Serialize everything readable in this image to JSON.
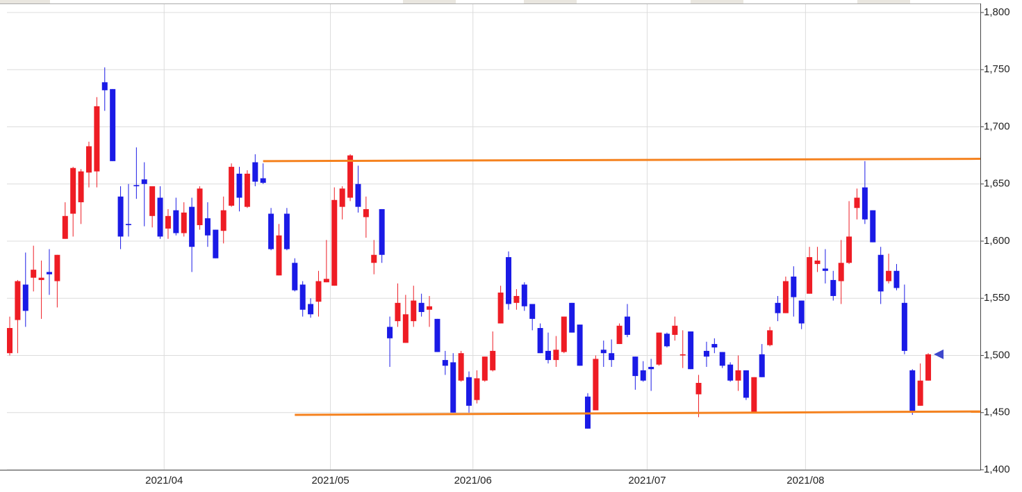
{
  "chart_data": {
    "type": "candlestick",
    "categories": [
      null,
      null,
      null,
      null,
      null,
      null,
      null,
      null,
      null,
      null,
      null,
      null,
      null,
      null,
      null,
      null,
      null,
      null,
      null,
      null,
      "2021/04",
      null,
      null,
      null,
      null,
      null,
      null,
      null,
      null,
      null,
      null,
      null,
      null,
      null,
      null,
      null,
      null,
      null,
      null,
      null,
      null,
      "2021/05",
      null,
      null,
      null,
      null,
      null,
      null,
      null,
      null,
      null,
      null,
      null,
      null,
      null,
      null,
      null,
      null,
      null,
      "2021/06",
      null,
      null,
      null,
      null,
      null,
      null,
      null,
      null,
      null,
      null,
      null,
      null,
      null,
      null,
      null,
      null,
      null,
      null,
      null,
      null,
      null,
      "2021/07",
      null,
      null,
      null,
      null,
      null,
      null,
      null,
      null,
      null,
      null,
      null,
      null,
      null,
      null,
      null,
      null,
      null,
      null,
      null,
      "2021/08",
      null,
      null,
      null,
      null,
      null,
      null,
      null,
      null,
      null,
      null,
      null,
      null,
      null,
      null,
      null
    ],
    "open": [
      1502,
      1531,
      1562,
      1568,
      1566,
      1573,
      1565,
      1602,
      1624,
      1634,
      1660,
      1661,
      1739,
      1733,
      1639,
      1615,
      1649,
      1654,
      1622,
      1638,
      1611,
      1627,
      1607,
      1630,
      1614,
      1620,
      1610,
      1609,
      1631,
      1659,
      1630,
      1669,
      1655,
      1624,
      1570,
      1624,
      1581,
      1562,
      1545,
      1547,
      1564,
      1561,
      1630,
      1638,
      1650,
      1621,
      1581,
      1628,
      1525,
      1530,
      1511,
      1530,
      1546,
      1540,
      1532,
      1496,
      1494,
      1478,
      1481,
      1461,
      1478,
      1487,
      1528,
      1586,
      1546,
      1562,
      1545,
      1524,
      1504,
      1496,
      1503,
      1546,
      1527,
      1464,
      1452,
      1505,
      1502,
      1510,
      1534,
      1499,
      1487,
      1490,
      1492,
      1519,
      1518,
      1500,
      1521,
      1466,
      1504,
      1510,
      1503,
      1492,
      1478,
      1487,
      1450,
      1501,
      1509,
      1546,
      1537,
      1569,
      1548,
      1554,
      1580,
      1576,
      1566,
      1565,
      1581,
      1629,
      1647,
      1627,
      1588,
      1565,
      1574,
      1546,
      1487,
      1456,
      1478
    ],
    "high": [
      1534,
      1566,
      1590,
      1596,
      1583,
      1593,
      1588,
      1634,
      1665,
      1663,
      1687,
      1726,
      1752,
      1733,
      1648,
      1650,
      1682,
      1669,
      1648,
      1648,
      1628,
      1638,
      1634,
      1638,
      1648,
      1634,
      1610,
      1639,
      1668,
      1665,
      1662,
      1676,
      1668,
      1629,
      1615,
      1629,
      1585,
      1565,
      1550,
      1574,
      1601,
      1647,
      1648,
      1676,
      1666,
      1639,
      1601,
      1628,
      1534,
      1563,
      1553,
      1561,
      1554,
      1552,
      1532,
      1504,
      1502,
      1504,
      1486,
      1487,
      1499,
      1521,
      1561,
      1591,
      1558,
      1564,
      1545,
      1528,
      1520,
      1517,
      1534,
      1546,
      1527,
      1467,
      1500,
      1513,
      1514,
      1528,
      1545,
      1499,
      1495,
      1497,
      1520,
      1520,
      1534,
      1522,
      1521,
      1483,
      1512,
      1515,
      1503,
      1494,
      1500,
      1487,
      1481,
      1510,
      1525,
      1552,
      1569,
      1578,
      1548,
      1595,
      1595,
      1593,
      1574,
      1601,
      1635,
      1646,
      1670,
      1627,
      1595,
      1589,
      1580,
      1562,
      1488,
      1493,
      1502
    ],
    "low": [
      1500,
      1502,
      1525,
      1556,
      1532,
      1553,
      1542,
      1602,
      1604,
      1615,
      1647,
      1647,
      1714,
      1670,
      1593,
      1604,
      1637,
      1613,
      1612,
      1602,
      1602,
      1605,
      1604,
      1573,
      1610,
      1595,
      1585,
      1598,
      1630,
      1626,
      1629,
      1648,
      1650,
      1592,
      1570,
      1592,
      1556,
      1534,
      1533,
      1534,
      1564,
      1561,
      1619,
      1635,
      1625,
      1603,
      1571,
      1581,
      1490,
      1525,
      1511,
      1525,
      1534,
      1525,
      1503,
      1483,
      1450,
      1477,
      1450,
      1458,
      1477,
      1486,
      1528,
      1540,
      1540,
      1539,
      1522,
      1502,
      1493,
      1490,
      1502,
      1520,
      1491,
      1436,
      1452,
      1490,
      1490,
      1510,
      1516,
      1470,
      1477,
      1469,
      1491,
      1507,
      1513,
      1489,
      1488,
      1446,
      1490,
      1502,
      1489,
      1477,
      1469,
      1461,
      1450,
      1481,
      1508,
      1530,
      1537,
      1534,
      1523,
      1554,
      1573,
      1563,
      1548,
      1545,
      1580,
      1619,
      1615,
      1599,
      1545,
      1563,
      1557,
      1501,
      1448,
      1456,
      1478
    ],
    "close": [
      1524,
      1565,
      1539,
      1575,
      1568,
      1571,
      1588,
      1622,
      1664,
      1661,
      1683,
      1718,
      1732,
      1670,
      1604,
      1614,
      1648,
      1650,
      1648,
      1604,
      1622,
      1607,
      1625,
      1595,
      1646,
      1605,
      1585,
      1627,
      1665,
      1638,
      1659,
      1652,
      1651,
      1593,
      1605,
      1593,
      1557,
      1540,
      1536,
      1565,
      1567,
      1636,
      1646,
      1675,
      1630,
      1628,
      1588,
      1588,
      1515,
      1546,
      1536,
      1548,
      1538,
      1543,
      1503,
      1491,
      1450,
      1502,
      1456,
      1480,
      1499,
      1504,
      1555,
      1545,
      1552,
      1543,
      1532,
      1502,
      1496,
      1505,
      1534,
      1520,
      1491,
      1436,
      1497,
      1502,
      1496,
      1526,
      1518,
      1482,
      1478,
      1488,
      1520,
      1508,
      1526,
      1501,
      1488,
      1476,
      1499,
      1507,
      1491,
      1478,
      1487,
      1463,
      1481,
      1481,
      1522,
      1537,
      1565,
      1551,
      1528,
      1586,
      1583,
      1574,
      1552,
      1581,
      1604,
      1638,
      1619,
      1599,
      1556,
      1574,
      1559,
      1504,
      1450,
      1478,
      1501
    ],
    "up_color": "#ee1c24",
    "down_color": "#1a1ae6",
    "marker_color": "#3f48cc",
    "lines": [
      {
        "color": "#f5821f",
        "start": 32,
        "values": [
          1670,
          1672
        ]
      },
      {
        "color": "#f5821f",
        "start": 36,
        "values": [
          1448,
          1451
        ]
      }
    ],
    "ylim": [
      1400,
      1800
    ],
    "yticks": [
      {
        "value": 1400,
        "label": "1,400"
      },
      {
        "value": 1450,
        "label": "1,450"
      },
      {
        "value": 1500,
        "label": "1,500"
      },
      {
        "value": 1550,
        "label": "1,550"
      },
      {
        "value": 1600,
        "label": "1,600"
      },
      {
        "value": 1650,
        "label": "1,650"
      },
      {
        "value": 1700,
        "label": "1,700"
      },
      {
        "value": 1750,
        "label": "1,750"
      },
      {
        "value": 1800,
        "label": "1,800"
      }
    ],
    "grid": true
  }
}
